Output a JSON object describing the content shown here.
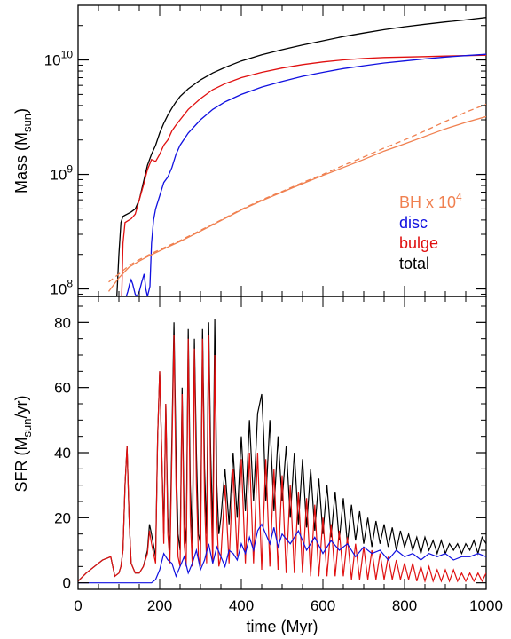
{
  "chart_data": [
    {
      "type": "line",
      "panel": "top",
      "ylabel": "Mass (M",
      "ylabel_sub": "sun",
      "ylabel_end": ")",
      "yscale": "log",
      "xlim": [
        0,
        1000
      ],
      "ylim": [
        86000000.0,
        30000000000.0
      ],
      "yticks": [
        {
          "base": "10",
          "exp": "8",
          "value": 100000000.0
        },
        {
          "base": "10",
          "exp": "9",
          "value": 1000000000.0
        },
        {
          "base": "10",
          "exp": "10",
          "value": 10000000000.0
        }
      ],
      "legend_position": "lower-right",
      "legend": [
        {
          "text": "BH x 10",
          "sup": "4",
          "color": "#f08050"
        },
        {
          "text": "disc",
          "sup": "",
          "color": "#1010e0"
        },
        {
          "text": "bulge",
          "sup": "",
          "color": "#e01010"
        },
        {
          "text": "total",
          "sup": "",
          "color": "#000000"
        }
      ],
      "series": [
        {
          "key": "total",
          "color": "#000000",
          "dash": false,
          "x": [
            95,
            100,
            105,
            110,
            115,
            120,
            130,
            140,
            150,
            160,
            170,
            180,
            190,
            200,
            210,
            220,
            230,
            240,
            250,
            270,
            300,
            330,
            360,
            400,
            450,
            500,
            550,
            600,
            650,
            700,
            750,
            800,
            850,
            900,
            950,
            1000
          ],
          "y": [
            86000000.0,
            200000000.0,
            380000000.0,
            430000000.0,
            440000000.0,
            450000000.0,
            470000000.0,
            500000000.0,
            600000000.0,
            850000000.0,
            1200000000.0,
            1500000000.0,
            1800000000.0,
            2300000000.0,
            2800000000.0,
            3300000000.0,
            3800000000.0,
            4300000000.0,
            4800000000.0,
            5600000000.0,
            6700000000.0,
            7700000000.0,
            8600000000.0,
            9800000000.0,
            11100000000.0,
            12300000000.0,
            13500000000.0,
            14700000000.0,
            16000000000.0,
            17200000000.0,
            18400000000.0,
            19500000000.0,
            20500000000.0,
            21500000000.0,
            22400000000.0,
            23500000000.0
          ]
        },
        {
          "key": "bulge",
          "color": "#e01010",
          "dash": false,
          "x": [
            107,
            110,
            115,
            120,
            130,
            140,
            150,
            160,
            170,
            180,
            190,
            200,
            210,
            220,
            230,
            240,
            250,
            270,
            300,
            330,
            360,
            400,
            450,
            500,
            550,
            600,
            650,
            700,
            750,
            800,
            850,
            900,
            950,
            1000
          ],
          "y": [
            86000000.0,
            250000000.0,
            380000000.0,
            390000000.0,
            410000000.0,
            450000000.0,
            600000000.0,
            800000000.0,
            1100000000.0,
            1350000000.0,
            1300000000.0,
            1500000000.0,
            1800000000.0,
            2000000000.0,
            2400000000.0,
            2700000000.0,
            3000000000.0,
            3700000000.0,
            4600000000.0,
            5500000000.0,
            6200000000.0,
            7000000000.0,
            7800000000.0,
            8500000000.0,
            9100000000.0,
            9600000000.0,
            10000000000.0,
            10300000000.0,
            10500000000.0,
            10600000000.0,
            10700000000.0,
            10800000000.0,
            10900000000.0,
            11000000000.0
          ]
        },
        {
          "key": "disc",
          "color": "#1010e0",
          "dash": false,
          "x": [
            118,
            122,
            126,
            130,
            134,
            140,
            144,
            150,
            156,
            162,
            166,
            170,
            176,
            180,
            185,
            190,
            200,
            210,
            220,
            230,
            240,
            250,
            270,
            300,
            330,
            360,
            400,
            450,
            500,
            550,
            600,
            650,
            700,
            750,
            800,
            850,
            900,
            950,
            1000
          ],
          "y": [
            86000000.0,
            95000000.0,
            110000000.0,
            120000000.0,
            110000000.0,
            90000000.0,
            86000000.0,
            95000000.0,
            115000000.0,
            135000000.0,
            100000000.0,
            86000000.0,
            105000000.0,
            250000000.0,
            400000000.0,
            500000000.0,
            650000000.0,
            850000000.0,
            950000000.0,
            1150000000.0,
            1500000000.0,
            1800000000.0,
            2300000000.0,
            3000000000.0,
            3700000000.0,
            4300000000.0,
            5000000000.0,
            5800000000.0,
            6500000000.0,
            7200000000.0,
            7800000000.0,
            8400000000.0,
            8900000000.0,
            9400000000.0,
            9800000000.0,
            10200000000.0,
            10600000000.0,
            10900000000.0,
            11200000000.0
          ]
        },
        {
          "key": "bh",
          "color": "#f08050",
          "dash": false,
          "x": [
            75,
            100,
            125,
            150,
            175,
            200,
            250,
            300,
            350,
            400,
            450,
            500,
            550,
            600,
            650,
            700,
            750,
            800,
            850,
            900,
            950,
            1000
          ],
          "y": [
            95000000.0,
            125000000.0,
            155000000.0,
            175000000.0,
            195000000.0,
            215000000.0,
            260000000.0,
            320000000.0,
            395000000.0,
            490000000.0,
            590000000.0,
            700000000.0,
            830000000.0,
            980000000.0,
            1150000000.0,
            1350000000.0,
            1600000000.0,
            1850000000.0,
            2150000000.0,
            2500000000.0,
            2850000000.0,
            3200000000.0
          ]
        },
        {
          "key": "bh-dashed",
          "color": "#f08050",
          "dash": true,
          "x": [
            75,
            100,
            125,
            150,
            175,
            200,
            250,
            300,
            350,
            400,
            450,
            500,
            550,
            600,
            650,
            700,
            750,
            800,
            850,
            900,
            950,
            1000
          ],
          "y": [
            115000000.0,
            135000000.0,
            160000000.0,
            180000000.0,
            200000000.0,
            220000000.0,
            265000000.0,
            325000000.0,
            400000000.0,
            495000000.0,
            600000000.0,
            710000000.0,
            850000000.0,
            1000000000.0,
            1200000000.0,
            1420000000.0,
            1700000000.0,
            2000000000.0,
            2400000000.0,
            2900000000.0,
            3500000000.0,
            4100000000.0
          ]
        }
      ]
    },
    {
      "type": "line",
      "panel": "bottom",
      "xlabel": "time (Myr)",
      "ylabel": "SFR (M",
      "ylabel_sub": "sun",
      "ylabel_end": "/yr)",
      "yscale": "linear",
      "xlim": [
        0,
        1000
      ],
      "ylim": [
        -2,
        88
      ],
      "xticks": [
        0,
        200,
        400,
        600,
        800,
        1000
      ],
      "yticks": [
        0,
        20,
        40,
        60,
        80
      ],
      "series": [
        {
          "key": "total",
          "color": "#000000",
          "x": [
            0,
            20,
            40,
            60,
            70,
            80,
            90,
            100,
            105,
            110,
            115,
            120,
            125,
            130,
            140,
            150,
            160,
            170,
            175,
            180,
            190,
            195,
            200,
            205,
            210,
            215,
            220,
            225,
            230,
            235,
            240,
            245,
            250,
            255,
            260,
            265,
            270,
            275,
            280,
            285,
            290,
            295,
            300,
            305,
            310,
            315,
            320,
            325,
            330,
            335,
            340,
            345,
            350,
            360,
            370,
            380,
            390,
            400,
            410,
            420,
            430,
            440,
            450,
            455,
            460,
            470,
            480,
            490,
            500,
            510,
            520,
            530,
            540,
            550,
            560,
            570,
            580,
            590,
            600,
            610,
            620,
            630,
            640,
            650,
            660,
            670,
            680,
            690,
            700,
            710,
            720,
            730,
            740,
            750,
            760,
            770,
            780,
            790,
            800,
            810,
            820,
            830,
            840,
            850,
            860,
            870,
            880,
            890,
            900,
            910,
            920,
            930,
            940,
            950,
            960,
            970,
            980,
            990,
            1000
          ],
          "y": [
            0.5,
            3,
            5,
            7,
            7.5,
            8,
            2,
            3,
            5,
            10,
            30,
            42,
            20,
            6,
            3,
            3,
            5,
            10,
            18,
            15,
            8,
            45,
            65,
            40,
            15,
            55,
            20,
            10,
            45,
            80,
            40,
            15,
            10,
            60,
            20,
            12,
            78,
            30,
            12,
            75,
            40,
            15,
            12,
            78,
            35,
            15,
            80,
            40,
            15,
            81,
            30,
            15,
            20,
            35,
            18,
            40,
            20,
            45,
            22,
            50,
            25,
            52,
            58,
            45,
            25,
            50,
            22,
            45,
            25,
            42,
            20,
            40,
            18,
            38,
            17,
            35,
            16,
            32,
            15,
            30,
            14,
            28,
            13,
            26,
            12,
            24,
            13,
            22,
            12,
            20,
            11,
            19,
            12,
            18,
            11,
            17,
            10,
            16,
            11,
            15,
            10,
            14,
            9,
            14,
            10,
            13,
            9,
            13,
            9,
            12,
            10,
            12,
            9,
            12,
            10,
            13,
            9,
            14,
            12
          ]
        },
        {
          "key": "bulge",
          "color": "#e01010",
          "x": [
            0,
            20,
            40,
            60,
            70,
            80,
            90,
            100,
            105,
            110,
            115,
            120,
            125,
            130,
            140,
            150,
            160,
            170,
            175,
            180,
            190,
            195,
            200,
            205,
            210,
            215,
            220,
            225,
            230,
            235,
            240,
            245,
            250,
            255,
            260,
            265,
            270,
            275,
            280,
            285,
            290,
            295,
            300,
            305,
            310,
            315,
            320,
            325,
            330,
            335,
            340,
            345,
            350,
            360,
            370,
            380,
            390,
            400,
            410,
            420,
            430,
            440,
            450,
            460,
            470,
            480,
            490,
            500,
            510,
            520,
            530,
            540,
            550,
            560,
            570,
            580,
            590,
            600,
            610,
            620,
            630,
            640,
            650,
            660,
            670,
            680,
            690,
            700,
            710,
            720,
            730,
            740,
            750,
            760,
            770,
            780,
            790,
            800,
            810,
            820,
            830,
            840,
            850,
            860,
            870,
            880,
            890,
            900,
            910,
            920,
            930,
            940,
            950,
            960,
            970,
            980,
            990,
            1000
          ],
          "y": [
            0.5,
            3,
            5,
            7,
            7.5,
            8,
            2,
            3,
            5,
            10,
            30,
            42,
            20,
            6,
            3,
            3,
            5,
            9,
            16,
            12,
            6,
            45,
            65,
            40,
            12,
            55,
            15,
            6,
            40,
            76,
            30,
            8,
            5,
            58,
            12,
            5,
            75,
            20,
            5,
            72,
            30,
            8,
            5,
            75,
            25,
            6,
            76,
            30,
            6,
            70,
            20,
            5,
            8,
            30,
            6,
            35,
            8,
            38,
            6,
            40,
            6,
            40,
            4,
            38,
            5,
            35,
            4,
            33,
            3,
            30,
            3,
            28,
            3,
            26,
            2,
            24,
            2,
            20,
            2,
            18,
            2,
            16,
            2,
            14,
            1,
            12,
            1,
            11,
            1,
            10,
            1,
            9,
            1,
            8,
            1,
            7,
            1,
            6,
            1,
            6,
            0.5,
            5,
            0.5,
            5,
            0.5,
            4,
            0.5,
            4,
            0.5,
            4,
            0.5,
            3,
            0.5,
            3,
            0.5,
            3,
            0.5,
            3
          ]
        },
        {
          "key": "disc",
          "color": "#1010e0",
          "x": [
            0,
            180,
            190,
            200,
            210,
            220,
            230,
            240,
            250,
            260,
            270,
            280,
            290,
            300,
            310,
            320,
            330,
            340,
            350,
            360,
            370,
            380,
            390,
            400,
            410,
            420,
            430,
            440,
            450,
            460,
            470,
            480,
            490,
            500,
            520,
            540,
            560,
            580,
            600,
            620,
            640,
            660,
            680,
            700,
            720,
            740,
            760,
            780,
            800,
            820,
            840,
            860,
            880,
            900,
            920,
            940,
            960,
            980,
            1000
          ],
          "y": [
            0,
            0,
            1,
            4,
            9,
            7,
            6,
            2,
            5,
            8,
            3,
            6,
            10,
            4,
            7,
            12,
            6,
            11,
            8,
            5,
            10,
            9,
            7,
            12,
            9,
            14,
            10,
            16,
            18,
            15,
            12,
            17,
            11,
            15,
            12,
            16,
            10,
            14,
            9,
            13,
            10,
            12,
            8,
            11,
            9,
            10,
            7,
            10,
            8,
            9,
            7,
            9,
            8,
            9,
            7,
            8,
            8,
            9,
            8
          ]
        }
      ]
    }
  ]
}
